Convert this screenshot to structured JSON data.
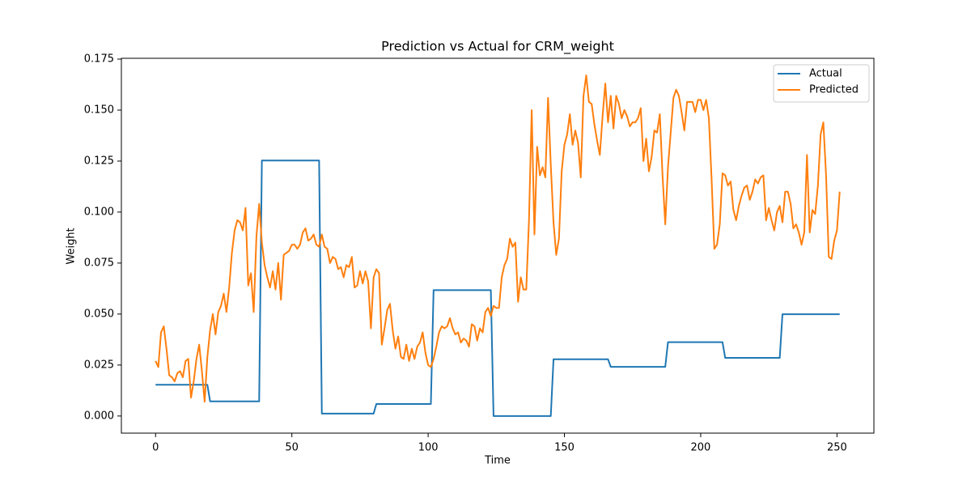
{
  "chart_data": {
    "type": "line",
    "title": "Prediction vs Actual for CRM_weight",
    "x_label": "Time",
    "y_label": "Weight",
    "x": [
      0,
      1,
      2,
      3,
      4,
      5,
      6,
      7,
      8,
      9,
      10,
      11,
      12,
      13,
      14,
      15,
      16,
      17,
      18,
      19,
      20,
      21,
      22,
      23,
      24,
      25,
      26,
      27,
      28,
      29,
      30,
      31,
      32,
      33,
      34,
      35,
      36,
      37,
      38,
      39,
      40,
      41,
      42,
      43,
      44,
      45,
      46,
      47,
      48,
      49,
      50,
      51,
      52,
      53,
      54,
      55,
      56,
      57,
      58,
      59,
      60,
      61,
      62,
      63,
      64,
      65,
      66,
      67,
      68,
      69,
      70,
      71,
      72,
      73,
      74,
      75,
      76,
      77,
      78,
      79,
      80,
      81,
      82,
      83,
      84,
      85,
      86,
      87,
      88,
      89,
      90,
      91,
      92,
      93,
      94,
      95,
      96,
      97,
      98,
      99,
      100,
      101,
      102,
      103,
      104,
      105,
      106,
      107,
      108,
      109,
      110,
      111,
      112,
      113,
      114,
      115,
      116,
      117,
      118,
      119,
      120,
      121,
      122,
      123,
      124,
      125,
      126,
      127,
      128,
      129,
      130,
      131,
      132,
      133,
      134,
      135,
      136,
      137,
      138,
      139,
      140,
      141,
      142,
      143,
      144,
      145,
      146,
      147,
      148,
      149,
      150,
      151,
      152,
      153,
      154,
      155,
      156,
      157,
      158,
      159,
      160,
      161,
      162,
      163,
      164,
      165,
      166,
      167,
      168,
      169,
      170,
      171,
      172,
      173,
      174,
      175,
      176,
      177,
      178,
      179,
      180,
      181,
      182,
      183,
      184,
      185,
      186,
      187,
      188,
      189,
      190,
      191,
      192,
      193,
      194,
      195,
      196,
      197,
      198,
      199,
      200,
      201,
      202,
      203,
      204,
      205,
      206,
      207,
      208,
      209,
      210,
      211,
      212,
      213,
      214,
      215,
      216,
      217,
      218,
      219,
      220,
      221,
      222,
      223,
      224,
      225,
      226,
      227,
      228,
      229,
      230,
      231,
      232,
      233,
      234,
      235,
      236,
      237,
      238,
      239,
      240,
      241,
      242,
      243,
      244,
      245,
      246,
      247,
      248,
      249,
      250,
      251
    ],
    "series": [
      {
        "name": "Actual",
        "color": "#1f77b4",
        "values": [
          0.0153,
          0.0153,
          0.0153,
          0.0153,
          0.0153,
          0.0153,
          0.0153,
          0.0153,
          0.0153,
          0.0153,
          0.0153,
          0.0153,
          0.0153,
          0.0153,
          0.0153,
          0.0153,
          0.0153,
          0.0153,
          0.0153,
          0.0153,
          0.0072,
          0.0072,
          0.0072,
          0.0072,
          0.0072,
          0.0072,
          0.0072,
          0.0072,
          0.0072,
          0.0072,
          0.0072,
          0.0072,
          0.0072,
          0.0072,
          0.0072,
          0.0072,
          0.0072,
          0.0072,
          0.0072,
          0.1253,
          0.1253,
          0.1253,
          0.1253,
          0.1253,
          0.1253,
          0.1253,
          0.1253,
          0.1253,
          0.1253,
          0.1253,
          0.1253,
          0.1253,
          0.1253,
          0.1253,
          0.1253,
          0.1253,
          0.1253,
          0.1253,
          0.1253,
          0.1253,
          0.1253,
          0.0012,
          0.0012,
          0.0012,
          0.0012,
          0.0012,
          0.0012,
          0.0012,
          0.0012,
          0.0012,
          0.0012,
          0.0012,
          0.0012,
          0.0012,
          0.0012,
          0.0012,
          0.0012,
          0.0012,
          0.0012,
          0.0012,
          0.0012,
          0.0059,
          0.0059,
          0.0059,
          0.0059,
          0.0059,
          0.0059,
          0.0059,
          0.0059,
          0.0059,
          0.0059,
          0.0059,
          0.0059,
          0.0059,
          0.0059,
          0.0059,
          0.0059,
          0.0059,
          0.0059,
          0.0059,
          0.0059,
          0.0059,
          0.0617,
          0.0617,
          0.0617,
          0.0617,
          0.0617,
          0.0617,
          0.0617,
          0.0617,
          0.0617,
          0.0617,
          0.0617,
          0.0617,
          0.0617,
          0.0617,
          0.0617,
          0.0617,
          0.0617,
          0.0617,
          0.0617,
          0.0617,
          0.0617,
          0.0617,
          0,
          0,
          0,
          0,
          0,
          0,
          0,
          0,
          0,
          0,
          0,
          0,
          0,
          0,
          0,
          0,
          0,
          0,
          0,
          0,
          0,
          0,
          0.0278,
          0.0278,
          0.0278,
          0.0278,
          0.0278,
          0.0278,
          0.0278,
          0.0278,
          0.0278,
          0.0278,
          0.0278,
          0.0278,
          0.0278,
          0.0278,
          0.0278,
          0.0278,
          0.0278,
          0.0278,
          0.0278,
          0.0278,
          0.0278,
          0.0241,
          0.0241,
          0.0241,
          0.0241,
          0.0241,
          0.0241,
          0.0241,
          0.0241,
          0.0241,
          0.0241,
          0.0241,
          0.0241,
          0.0241,
          0.0241,
          0.0241,
          0.0241,
          0.0241,
          0.0241,
          0.0241,
          0.0241,
          0.0241,
          0.0362,
          0.0362,
          0.0362,
          0.0362,
          0.0362,
          0.0362,
          0.0362,
          0.0362,
          0.0362,
          0.0362,
          0.0362,
          0.0362,
          0.0362,
          0.0362,
          0.0362,
          0.0362,
          0.0362,
          0.0362,
          0.0362,
          0.0362,
          0.0362,
          0.0285,
          0.0285,
          0.0285,
          0.0285,
          0.0285,
          0.0285,
          0.0285,
          0.0285,
          0.0285,
          0.0285,
          0.0285,
          0.0285,
          0.0285,
          0.0285,
          0.0285,
          0.0285,
          0.0285,
          0.0285,
          0.0285,
          0.0285,
          0.0285,
          0.0499,
          0.0499,
          0.0499,
          0.0499,
          0.0499,
          0.0499,
          0.0499,
          0.0499,
          0.0499,
          0.0499,
          0.0499,
          0.0499,
          0.0499,
          0.0499,
          0.0499,
          0.0499,
          0.0499,
          0.0499,
          0.0499,
          0.0499,
          0.0499,
          0.0499
        ]
      },
      {
        "name": "Predicted",
        "color": "#ff7f0e",
        "values": [
          0.027,
          0.024,
          0.041,
          0.044,
          0.033,
          0.02,
          0.019,
          0.017,
          0.021,
          0.022,
          0.019,
          0.027,
          0.028,
          0.009,
          0.017,
          0.028,
          0.035,
          0.022,
          0.007,
          0.029,
          0.042,
          0.05,
          0.04,
          0.051,
          0.054,
          0.06,
          0.051,
          0.063,
          0.08,
          0.091,
          0.096,
          0.095,
          0.091,
          0.102,
          0.064,
          0.07,
          0.051,
          0.088,
          0.104,
          0.085,
          0.074,
          0.068,
          0.063,
          0.071,
          0.062,
          0.075,
          0.057,
          0.079,
          0.08,
          0.081,
          0.084,
          0.084,
          0.082,
          0.084,
          0.09,
          0.092,
          0.086,
          0.087,
          0.089,
          0.084,
          0.083,
          0.089,
          0.083,
          0.082,
          0.075,
          0.078,
          0.077,
          0.072,
          0.073,
          0.068,
          0.074,
          0.073,
          0.078,
          0.063,
          0.064,
          0.071,
          0.065,
          0.071,
          0.066,
          0.043,
          0.068,
          0.072,
          0.07,
          0.035,
          0.043,
          0.052,
          0.055,
          0.042,
          0.033,
          0.039,
          0.029,
          0.028,
          0.035,
          0.027,
          0.033,
          0.028,
          0.034,
          0.036,
          0.041,
          0.031,
          0.025,
          0.024,
          0.028,
          0.034,
          0.041,
          0.044,
          0.043,
          0.044,
          0.048,
          0.043,
          0.04,
          0.041,
          0.036,
          0.038,
          0.037,
          0.034,
          0.045,
          0.044,
          0.037,
          0.043,
          0.041,
          0.051,
          0.053,
          0.049,
          0.054,
          0.053,
          0.053,
          0.068,
          0.074,
          0.077,
          0.087,
          0.083,
          0.085,
          0.056,
          0.068,
          0.062,
          0.062,
          0.096,
          0.15,
          0.089,
          0.132,
          0.118,
          0.122,
          0.117,
          0.156,
          0.123,
          0.095,
          0.079,
          0.087,
          0.12,
          0.133,
          0.138,
          0.148,
          0.133,
          0.14,
          0.134,
          0.117,
          0.157,
          0.167,
          0.154,
          0.153,
          0.143,
          0.135,
          0.128,
          0.147,
          0.163,
          0.144,
          0.157,
          0.141,
          0.157,
          0.153,
          0.146,
          0.15,
          0.147,
          0.142,
          0.144,
          0.144,
          0.146,
          0.151,
          0.125,
          0.136,
          0.12,
          0.127,
          0.14,
          0.139,
          0.148,
          0.118,
          0.094,
          0.122,
          0.139,
          0.156,
          0.16,
          0.157,
          0.149,
          0.14,
          0.154,
          0.154,
          0.154,
          0.149,
          0.155,
          0.155,
          0.15,
          0.155,
          0.146,
          0.116,
          0.082,
          0.084,
          0.094,
          0.119,
          0.118,
          0.113,
          0.115,
          0.101,
          0.096,
          0.103,
          0.108,
          0.112,
          0.113,
          0.106,
          0.11,
          0.116,
          0.114,
          0.117,
          0.118,
          0.096,
          0.102,
          0.096,
          0.091,
          0.1,
          0.103,
          0.095,
          0.11,
          0.11,
          0.104,
          0.092,
          0.094,
          0.09,
          0.084,
          0.09,
          0.128,
          0.09,
          0.101,
          0.099,
          0.113,
          0.138,
          0.144,
          0.118,
          0.078,
          0.077,
          0.086,
          0.091,
          0.11
        ]
      }
    ],
    "xlim": [
      -12.55,
      263.55
    ],
    "ylim": [
      -0.0084,
      0.1754
    ],
    "xticks": [
      0,
      50,
      100,
      150,
      200,
      250
    ],
    "yticks": [
      {
        "value": 0,
        "label": "0.000"
      },
      {
        "value": 0.025,
        "label": "0.025"
      },
      {
        "value": 0.05,
        "label": "0.050"
      },
      {
        "value": 0.075,
        "label": "0.075"
      },
      {
        "value": 0.1,
        "label": "0.100"
      },
      {
        "value": 0.125,
        "label": "0.125"
      },
      {
        "value": 0.15,
        "label": "0.150"
      },
      {
        "value": 0.175,
        "label": "0.175"
      }
    ],
    "grid": false,
    "legend": "upper right"
  }
}
